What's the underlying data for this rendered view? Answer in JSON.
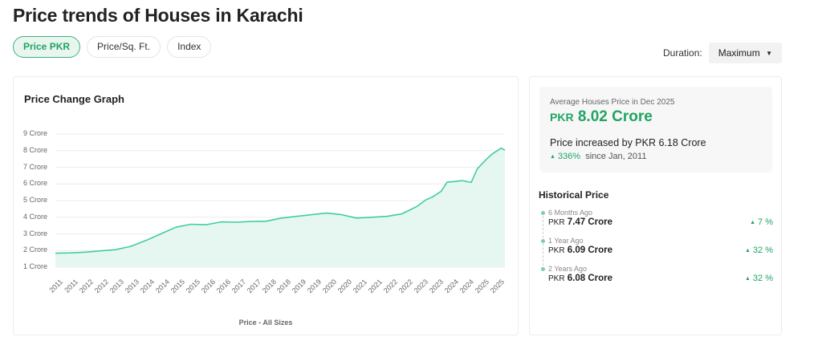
{
  "page": {
    "title": "Price trends of Houses in Karachi"
  },
  "tabs": [
    {
      "label": "Price PKR",
      "active": true
    },
    {
      "label": "Price/Sq. Ft.",
      "active": false
    },
    {
      "label": "Index",
      "active": false
    }
  ],
  "duration": {
    "label": "Duration:",
    "selected": "Maximum",
    "caret_icon": "▼"
  },
  "graph_card": {
    "title": "Price Change Graph",
    "x_axis_title": "Price - All Sizes"
  },
  "summary": {
    "label": "Average Houses Price in Dec 2025",
    "currency": "PKR",
    "price": "8.02 Crore",
    "increase_text": "Price increased by PKR 6.18 Crore",
    "change_icon": "▲",
    "change_pct": "336%",
    "since": "since Jan, 2011"
  },
  "historical": {
    "title": "Historical Price",
    "items": [
      {
        "when": "6 Months Ago",
        "currency": "PKR",
        "price": "7.47 Crore",
        "change": "7 %"
      },
      {
        "when": "1 Year Ago",
        "currency": "PKR",
        "price": "6.09 Crore",
        "change": "32 %"
      },
      {
        "when": "2 Years Ago",
        "currency": "PKR",
        "price": "6.08 Crore",
        "change": "32 %"
      }
    ]
  },
  "colors": {
    "accent": "#21a463",
    "line": "#3fcf9a",
    "fill": "#e6f7f1",
    "grid": "#ececec"
  },
  "chart_data": {
    "type": "area",
    "title": "Price Change Graph",
    "xlabel": "Price - All Sizes",
    "ylabel": "",
    "y_ticks": [
      "1 Crore",
      "2 Crore",
      "3 Crore",
      "4 Crore",
      "5 Crore",
      "6 Crore",
      "7 Crore",
      "8 Crore",
      "9 Crore"
    ],
    "x_ticks": [
      "2011",
      "2011",
      "2012",
      "2012",
      "2013",
      "2013",
      "2014",
      "2014",
      "2015",
      "2015",
      "2016",
      "2016",
      "2017",
      "2017",
      "2018",
      "2018",
      "2019",
      "2019",
      "2020",
      "2020",
      "2021",
      "2021",
      "2022",
      "2022",
      "2023",
      "2023",
      "2024",
      "2024",
      "2025",
      "2025"
    ],
    "ylim": [
      1,
      9
    ],
    "grid": true,
    "legend": "none",
    "unit": "Crore PKR",
    "x": [
      2011.0,
      2011.5,
      2012.0,
      2012.5,
      2013.0,
      2013.5,
      2014.0,
      2014.5,
      2015.0,
      2015.5,
      2016.0,
      2016.5,
      2017.0,
      2017.5,
      2018.0,
      2018.5,
      2019.0,
      2019.5,
      2020.0,
      2020.5,
      2021.0,
      2021.5,
      2022.0,
      2022.5,
      2023.0,
      2023.3,
      2023.5,
      2023.8,
      2024.0,
      2024.3,
      2024.5,
      2024.8,
      2025.0,
      2025.3,
      2025.5,
      2025.8,
      2025.92
    ],
    "values": [
      1.84,
      1.86,
      1.9,
      1.98,
      2.05,
      2.25,
      2.6,
      3.0,
      3.4,
      3.58,
      3.55,
      3.72,
      3.7,
      3.74,
      3.76,
      3.95,
      4.05,
      4.15,
      4.25,
      4.15,
      3.95,
      4.0,
      4.05,
      4.2,
      4.65,
      5.05,
      5.2,
      5.55,
      6.1,
      6.15,
      6.2,
      6.09,
      6.9,
      7.47,
      7.8,
      8.15,
      8.02
    ],
    "series": [
      {
        "name": "Price - All Sizes",
        "color": "#3fcf9a"
      }
    ]
  }
}
